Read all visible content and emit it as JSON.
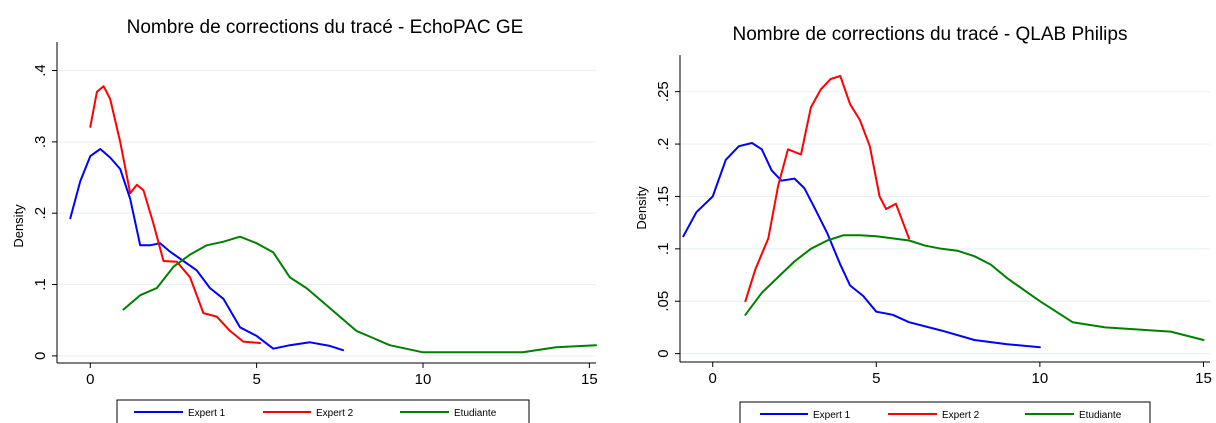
{
  "chart_data": [
    {
      "type": "line",
      "title": "Nombre de corrections du tracé - EchoPAC GE",
      "xlabel": "",
      "ylabel": "Density",
      "xlim": [
        -1,
        15.2
      ],
      "ylim": [
        -0.01,
        0.44
      ],
      "xticks": [
        0,
        5,
        10,
        15
      ],
      "xtick_labels": [
        "0",
        "5",
        "10",
        "15"
      ],
      "yticks": [
        0,
        0.1,
        0.2,
        0.3,
        0.4
      ],
      "ytick_labels": [
        "0",
        ".1",
        ".2",
        ".3",
        ".4"
      ],
      "grid": true,
      "legend_position": "bottom",
      "series": [
        {
          "name": "Expert 1",
          "color": "#0000ff",
          "x": [
            -0.6,
            -0.3,
            0,
            0.3,
            0.6,
            0.9,
            1.2,
            1.5,
            1.8,
            2.1,
            2.4,
            2.8,
            3.2,
            3.6,
            4,
            4.5,
            5,
            5.5,
            6,
            6.6,
            7.2,
            7.6
          ],
          "y": [
            0.193,
            0.245,
            0.28,
            0.29,
            0.278,
            0.262,
            0.22,
            0.155,
            0.155,
            0.158,
            0.146,
            0.133,
            0.12,
            0.095,
            0.08,
            0.04,
            0.028,
            0.01,
            0.015,
            0.019,
            0.014,
            0.008
          ]
        },
        {
          "name": "Expert 2",
          "color": "#ff0000",
          "x": [
            0,
            0.2,
            0.4,
            0.6,
            0.9,
            1.2,
            1.4,
            1.6,
            1.9,
            2.2,
            2.6,
            3,
            3.4,
            3.8,
            4.2,
            4.6,
            5.1
          ],
          "y": [
            0.321,
            0.37,
            0.378,
            0.36,
            0.3,
            0.228,
            0.24,
            0.232,
            0.185,
            0.133,
            0.132,
            0.11,
            0.06,
            0.055,
            0.035,
            0.02,
            0.018
          ]
        },
        {
          "name": "Etudiante",
          "color": "#008000",
          "x": [
            1,
            1.5,
            2,
            2.5,
            3,
            3.5,
            4,
            4.5,
            5,
            5.5,
            6,
            6.5,
            7,
            7.5,
            8,
            8.5,
            9,
            10,
            11,
            12,
            13,
            14,
            15.2
          ],
          "y": [
            0.065,
            0.085,
            0.095,
            0.125,
            0.142,
            0.155,
            0.16,
            0.167,
            0.158,
            0.145,
            0.11,
            0.095,
            0.075,
            0.055,
            0.035,
            0.025,
            0.015,
            0.005,
            0.005,
            0.005,
            0.005,
            0.012,
            0.015
          ]
        }
      ]
    },
    {
      "type": "line",
      "title": "Nombre de corrections du tracé - QLAB Philips",
      "xlabel": "",
      "ylabel": "Density",
      "xlim": [
        -1,
        15.2
      ],
      "ylim": [
        -0.008,
        0.285
      ],
      "xticks": [
        0,
        5,
        10,
        15
      ],
      "xtick_labels": [
        "0",
        "5",
        "10",
        "15"
      ],
      "yticks": [
        0,
        0.05,
        0.1,
        0.15,
        0.2,
        0.25
      ],
      "ytick_labels": [
        "0",
        ".05",
        ".1",
        ".15",
        ".2",
        ".25"
      ],
      "grid": true,
      "legend_position": "bottom",
      "series": [
        {
          "name": "Expert 1",
          "color": "#0000ff",
          "x": [
            -0.9,
            -0.5,
            0,
            0.4,
            0.8,
            1.2,
            1.5,
            1.8,
            2.1,
            2.5,
            2.8,
            3.1,
            3.5,
            3.9,
            4.2,
            4.6,
            5,
            5.5,
            6,
            7,
            8,
            9,
            10
          ],
          "y": [
            0.112,
            0.135,
            0.15,
            0.185,
            0.198,
            0.201,
            0.195,
            0.175,
            0.165,
            0.167,
            0.158,
            0.14,
            0.115,
            0.085,
            0.065,
            0.055,
            0.04,
            0.037,
            0.03,
            0.022,
            0.013,
            0.009,
            0.006
          ]
        },
        {
          "name": "Expert 2",
          "color": "#ff0000",
          "x": [
            1,
            1.3,
            1.7,
            2,
            2.3,
            2.7,
            3,
            3.3,
            3.6,
            3.9,
            4.2,
            4.5,
            4.8,
            5.1,
            5.3,
            5.6,
            6
          ],
          "y": [
            0.05,
            0.08,
            0.11,
            0.16,
            0.195,
            0.19,
            0.235,
            0.252,
            0.262,
            0.265,
            0.238,
            0.223,
            0.198,
            0.15,
            0.138,
            0.143,
            0.11
          ]
        },
        {
          "name": "Etudiante",
          "color": "#008000",
          "x": [
            1,
            1.5,
            2,
            2.5,
            3,
            3.5,
            4,
            4.5,
            5,
            5.5,
            6,
            6.5,
            7,
            7.5,
            8,
            8.5,
            9,
            10,
            11,
            12,
            13,
            14,
            15
          ],
          "y": [
            0.037,
            0.058,
            0.073,
            0.088,
            0.1,
            0.108,
            0.113,
            0.113,
            0.112,
            0.11,
            0.108,
            0.103,
            0.1,
            0.098,
            0.093,
            0.085,
            0.072,
            0.05,
            0.03,
            0.025,
            0.023,
            0.021,
            0.013
          ]
        }
      ]
    }
  ]
}
